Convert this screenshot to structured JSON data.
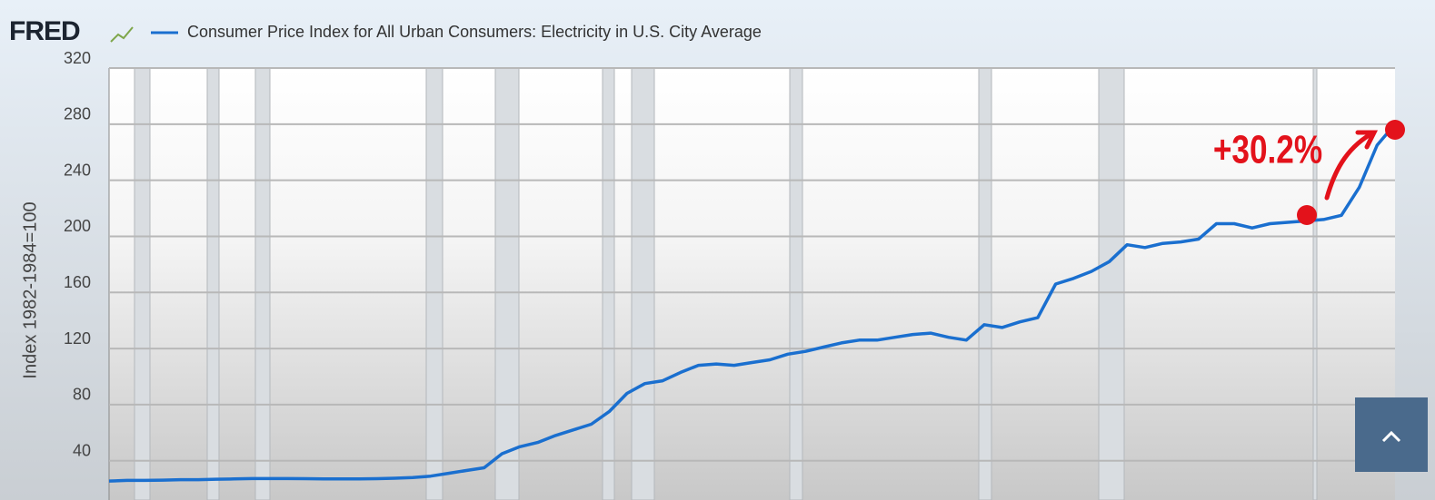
{
  "brand": "FRED",
  "chart_data": {
    "type": "line",
    "ylabel": "Index 1982-1984=100",
    "annotation": "+30.2%",
    "ylim": [
      12,
      320
    ],
    "yticks": [
      40,
      80,
      120,
      160,
      200,
      240,
      280,
      320
    ],
    "grid": true,
    "series": [
      {
        "name": "Consumer Price Index for All Urban Consumers: Electricity in U.S. City Average",
        "color": "#1a6fcf",
        "values": [
          25.5,
          26,
          26,
          26.2,
          26.5,
          26.5,
          26.8,
          27,
          27.3,
          27.3,
          27.3,
          27.2,
          27.1,
          27,
          27,
          27.2,
          27.5,
          28,
          29,
          31,
          33,
          35,
          45,
          50,
          53,
          58,
          62,
          66,
          75,
          88,
          95,
          97,
          103,
          108,
          109,
          108,
          110,
          112,
          116,
          118,
          121,
          124,
          126,
          126,
          128,
          130,
          131,
          128,
          126,
          137,
          135,
          139,
          142,
          166,
          170,
          175,
          182,
          194,
          192,
          195,
          196,
          198,
          209,
          209,
          206,
          209,
          210,
          211,
          212,
          215,
          235,
          265,
          280
        ]
      }
    ]
  }
}
